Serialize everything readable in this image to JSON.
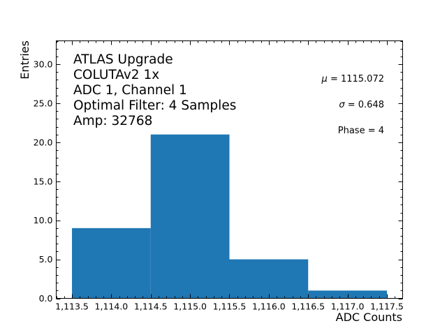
{
  "chart_data": {
    "type": "bar",
    "subtype": "histogram",
    "title": "",
    "xlabel": "ADC Counts",
    "ylabel": "Entries",
    "bin_edges": [
      1113.5,
      1114.5,
      1115.5,
      1116.5,
      1117.5
    ],
    "categories": [
      "1113.5-1114.5",
      "1114.5-1115.5",
      "1115.5-1116.5",
      "1116.5-1117.5"
    ],
    "values": [
      9,
      21,
      5,
      1
    ],
    "bar_color": "#1f77b4",
    "xlim": [
      1113.3,
      1117.7
    ],
    "ylim": [
      0,
      33
    ],
    "x_ticks": [
      1113.5,
      1114.0,
      1114.5,
      1115.0,
      1115.5,
      1116.0,
      1116.5,
      1117.0,
      1117.5
    ],
    "x_tick_labels": [
      "1,113.5",
      "1,114.0",
      "1,114.5",
      "1,115.0",
      "1,115.5",
      "1,116.0",
      "1,116.5",
      "1,117.0",
      "1,117.5"
    ],
    "y_ticks": [
      0,
      5,
      10,
      15,
      20,
      25,
      30
    ],
    "y_tick_labels": [
      "0.0",
      "5.0",
      "10.0",
      "15.0",
      "20.0",
      "25.0",
      "30.0"
    ],
    "grid": false,
    "annotations_left": [
      "ATLAS Upgrade",
      "COLUTAv2 1x",
      "ADC 1, Channel 1",
      "Optimal Filter: 4 Samples",
      "Amp: 32768"
    ],
    "annotations_right": [
      {
        "symbol": "μ",
        "text": " = 1115.072"
      },
      {
        "symbol": "σ",
        "text": " = 0.648"
      },
      {
        "symbol": "",
        "text": "Phase = 4"
      }
    ]
  }
}
